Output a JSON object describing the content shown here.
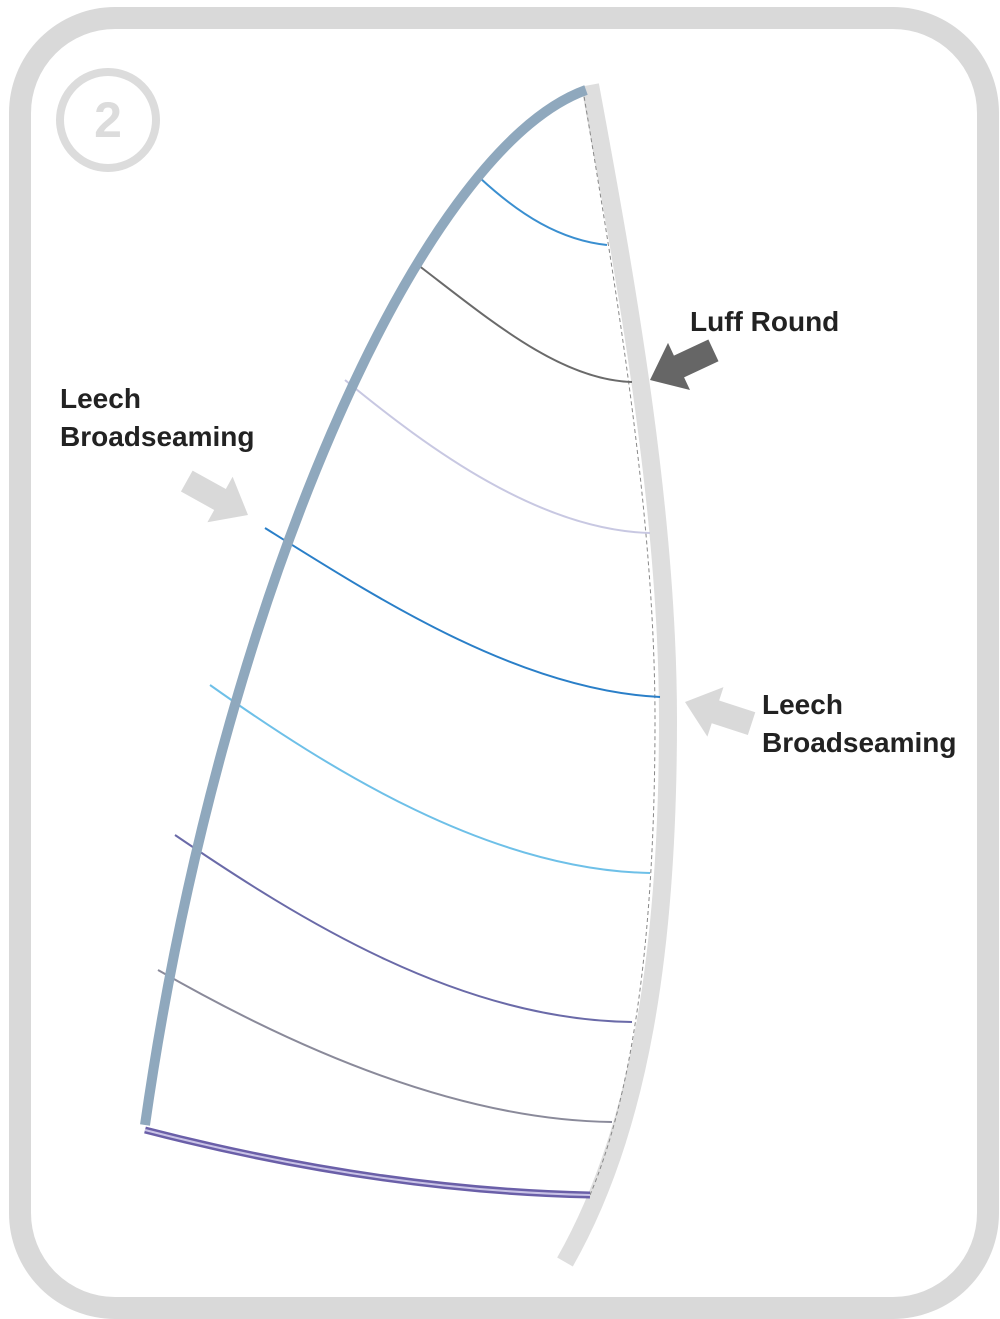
{
  "step": "2",
  "labels": [
    {
      "lines": [
        "Luff Round"
      ]
    },
    {
      "lines": [
        "Leech",
        "Broadseaming"
      ]
    },
    {
      "lines": [
        "Leech",
        "Broadseaming"
      ]
    }
  ]
}
